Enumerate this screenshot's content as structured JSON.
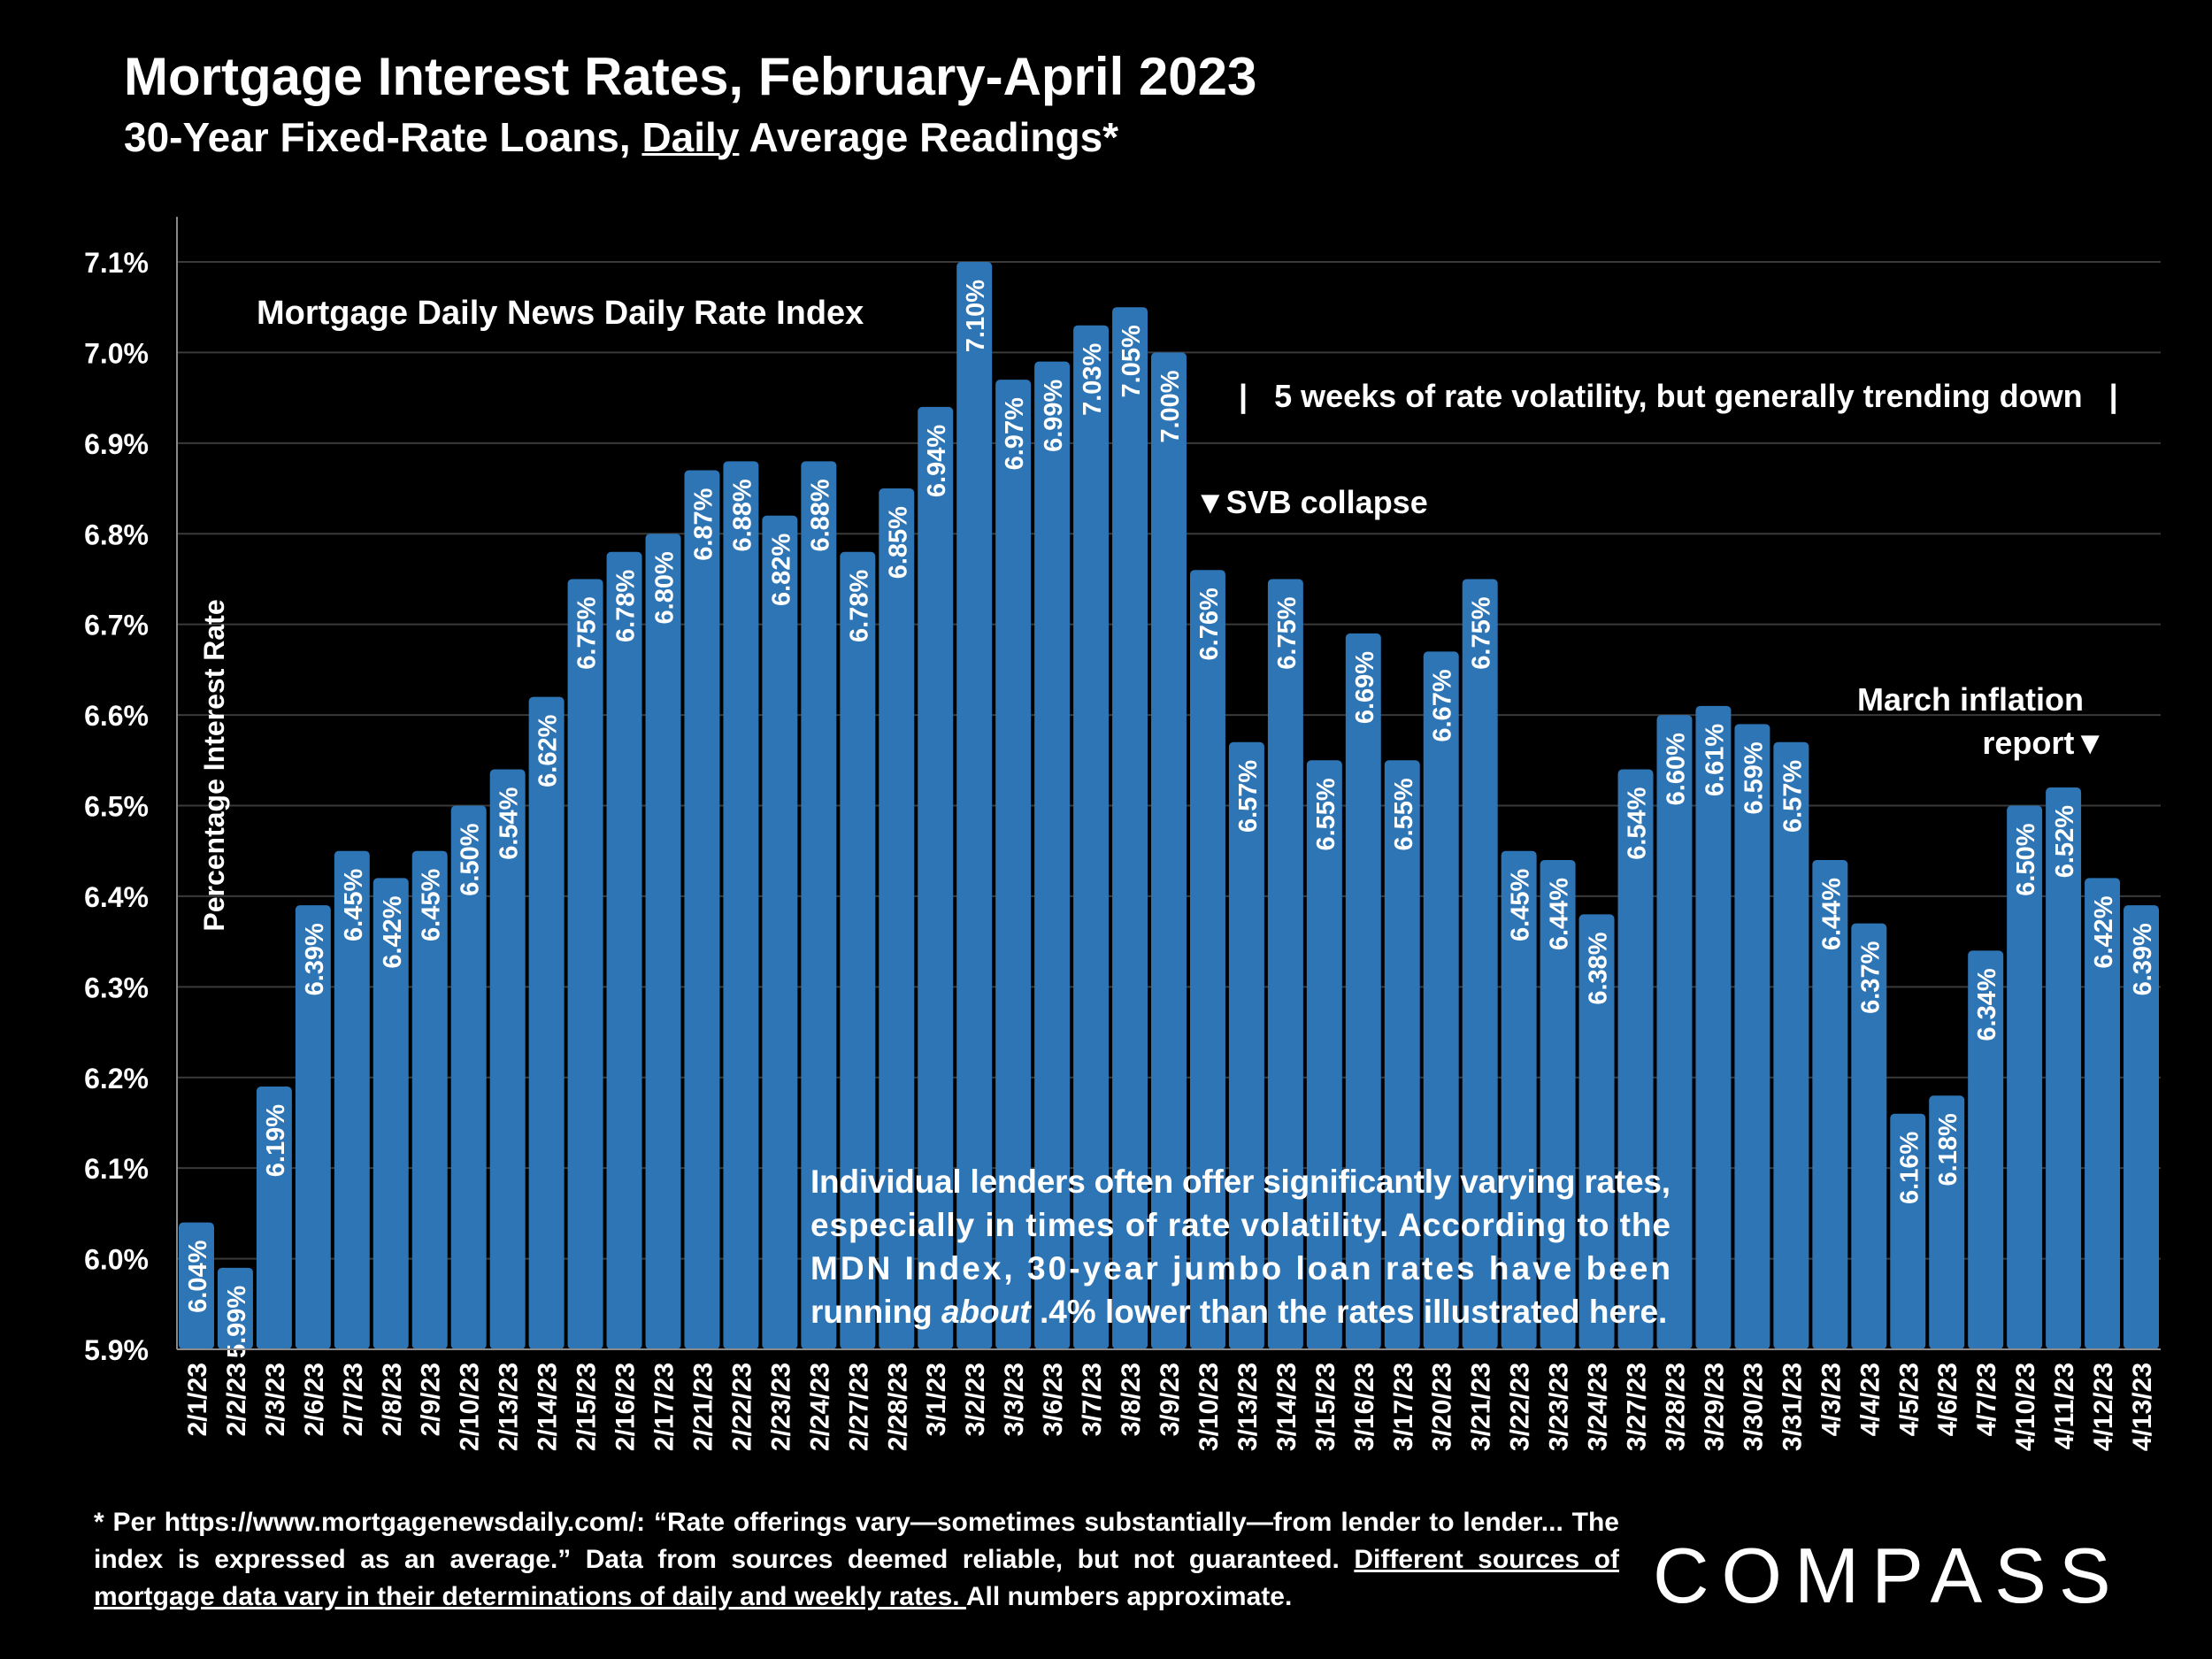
{
  "header": {
    "title": "Mortgage Interest Rates, February-April 2023",
    "subtitle_pre": "30-Year Fixed-Rate Loans, ",
    "subtitle_underlined": "Daily",
    "subtitle_post": " Average Readings*"
  },
  "chart_data": {
    "type": "bar",
    "title": "Mortgage Daily News Daily Rate Index",
    "ylabel": "Percentage Interest  Rate",
    "xlabel": "",
    "ylim": [
      5.9,
      7.1
    ],
    "ytick_values": [
      5.9,
      6.0,
      6.1,
      6.2,
      6.3,
      6.4,
      6.5,
      6.6,
      6.7,
      6.8,
      6.9,
      7.0,
      7.1
    ],
    "yticks": [
      "5.9%",
      "6.0%",
      "6.1%",
      "6.2%",
      "6.3%",
      "6.4%",
      "6.5%",
      "6.6%",
      "6.7%",
      "6.8%",
      "6.9%",
      "7.0%",
      "7.1%"
    ],
    "grid": true,
    "bar_color": "#2E75B6",
    "categories": [
      "2/1/23",
      "2/2/23",
      "2/3/23",
      "2/6/23",
      "2/7/23",
      "2/8/23",
      "2/9/23",
      "2/10/23",
      "2/13/23",
      "2/14/23",
      "2/15/23",
      "2/16/23",
      "2/17/23",
      "2/21/23",
      "2/22/23",
      "2/23/23",
      "2/24/23",
      "2/27/23",
      "2/28/23",
      "3/1/23",
      "3/2/23",
      "3/3/23",
      "3/6/23",
      "3/7/23",
      "3/8/23",
      "3/9/23",
      "3/10/23",
      "3/13/23",
      "3/14/23",
      "3/15/23",
      "3/16/23",
      "3/17/23",
      "3/20/23",
      "3/21/23",
      "3/22/23",
      "3/23/23",
      "3/24/23",
      "3/27/23",
      "3/28/23",
      "3/29/23",
      "3/30/23",
      "3/31/23",
      "4/3/23",
      "4/4/23",
      "4/5/23",
      "4/6/23",
      "4/7/23",
      "4/10/23",
      "4/11/23",
      "4/12/23",
      "4/13/23"
    ],
    "values": [
      6.04,
      5.99,
      6.19,
      6.39,
      6.45,
      6.42,
      6.45,
      6.5,
      6.54,
      6.62,
      6.75,
      6.78,
      6.8,
      6.87,
      6.88,
      6.82,
      6.88,
      6.78,
      6.85,
      6.94,
      7.1,
      6.97,
      6.99,
      7.03,
      7.05,
      7.0,
      6.76,
      6.57,
      6.75,
      6.55,
      6.69,
      6.55,
      6.67,
      6.75,
      6.45,
      6.44,
      6.38,
      6.54,
      6.6,
      6.61,
      6.59,
      6.57,
      6.44,
      6.37,
      6.16,
      6.18,
      6.34,
      6.5,
      6.52,
      6.42,
      6.39
    ],
    "data_labels": [
      "6.04%",
      "5.99%",
      "6.19%",
      "6.39%",
      "6.45%",
      "6.42%",
      "6.45%",
      "6.50%",
      "6.54%",
      "6.62%",
      "6.75%",
      "6.78%",
      "6.80%",
      "6.87%",
      "6.88%",
      "6.82%",
      "6.88%",
      "6.78%",
      "6.85%",
      "6.94%",
      "7.10%",
      "6.97%",
      "6.99%",
      "7.03%",
      "7.05%",
      "7.00%",
      "6.76%",
      "6.57%",
      "6.75%",
      "6.55%",
      "6.69%",
      "6.55%",
      "6.67%",
      "6.75%",
      "6.45%",
      "6.44%",
      "6.38%",
      "6.54%",
      "6.60%",
      "6.61%",
      "6.59%",
      "6.57%",
      "6.44%",
      "6.37%",
      "6.16%",
      "6.18%",
      "6.34%",
      "6.50%",
      "6.52%",
      "6.42%",
      "6.39%"
    ],
    "annotations": {
      "volatility": "|   5 weeks of rate volatility, but generally trending down   |",
      "svb": "▼SVB collapse",
      "inflation_line1": "March inflation",
      "inflation_line2": "report▼",
      "note_lines": [
        "Individual lenders often offer significantly varying rates,",
        "especially in times of rate volatility. According to the",
        "MDN Index, 30-year jumbo loan rates have been"
      ],
      "note_last_pre": "running ",
      "note_last_em": "about",
      "note_last_post": " .4% lower than the rates illustrated here."
    }
  },
  "footer": {
    "footnote_main": "* Per https://www.mortgagenewsdaily.com/: “Rate offerings vary—sometimes substantially—from lender to lender... The index is expressed as an average.” Data from sources deemed reliable, but not guaranteed. ",
    "footnote_underlined": "Different sources of mortgage data vary in their determinations of daily and weekly rates. ",
    "footnote_end": "All numbers approximate.",
    "logo": "COMPASS"
  }
}
